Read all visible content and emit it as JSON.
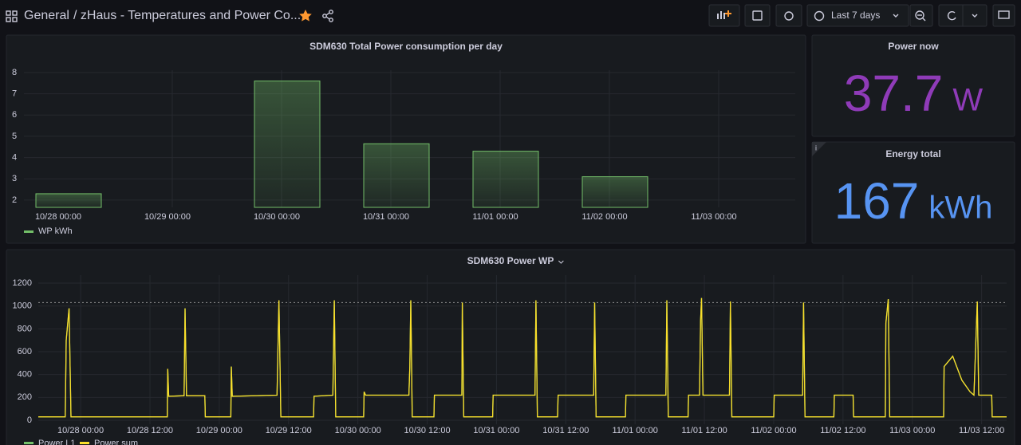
{
  "header": {
    "breadcrumb": "General",
    "title": "/ zHaus - Temperatures and Power Co...",
    "time_range": "Last 7 days"
  },
  "chart_data": [
    {
      "type": "bar",
      "title": "SDM630 Total Power consumption per day",
      "categories": [
        "10/28 00:00",
        "10/29 00:00",
        "10/30 00:00",
        "10/31 00:00",
        "11/01 00:00",
        "11/02 00:00",
        "11/03 00:00"
      ],
      "series": [
        {
          "name": "WP kWh",
          "color": "#73bf69",
          "values": [
            2.3,
            null,
            7.6,
            4.65,
            4.3,
            3.1,
            null
          ]
        }
      ],
      "ylim": [
        1.66,
        8.11
      ],
      "yticks": [
        2,
        3,
        4,
        5,
        6,
        7,
        8
      ],
      "grid": true
    },
    {
      "type": "stat",
      "title": "Power now",
      "value": 37.7,
      "unit": "W",
      "color": "#8f3bb8"
    },
    {
      "type": "stat",
      "title": "Energy total",
      "value": 167,
      "unit": "kWh",
      "color": "#5794f2"
    },
    {
      "type": "line",
      "title": "SDM630 Power WP",
      "x": [
        "10/27 16:40",
        "10/27 21:20",
        "10/27 21:30",
        "10/27 22:00",
        "10/27 22:20",
        "10/28 15:00",
        "10/28 15:05",
        "10/28 15:15",
        "10/28 17:55",
        "10/28 18:05",
        "10/28 18:20",
        "10/28 21:30",
        "10/28 21:35",
        "10/29 02:00",
        "10/29 02:05",
        "10/29 02:15",
        "10/29 10:00",
        "10/29 10:20",
        "10/29 10:40",
        "10/29 16:20",
        "10/29 16:25",
        "10/29 19:40",
        "10/29 19:55",
        "10/29 20:10",
        "10/30 01:00",
        "10/30 01:05",
        "10/30 01:20",
        "10/30 08:50",
        "10/30 09:00",
        "10/30 09:10",
        "10/30 09:25",
        "10/30 13:10",
        "10/30 13:15",
        "10/30 18:00",
        "10/30 18:05",
        "10/30 18:20",
        "10/30 23:20",
        "10/30 23:25",
        "10/31 06:40",
        "10/31 06:50",
        "10/31 07:05",
        "10/31 10:35",
        "10/31 10:40",
        "10/31 16:50",
        "10/31 17:00",
        "10/31 17:15",
        "10/31 22:20",
        "10/31 22:25",
        "11/01 05:20",
        "11/01 05:30",
        "11/01 05:45",
        "11/01 09:10",
        "11/01 09:15",
        "11/01 11:10",
        "11/01 11:20",
        "11/01 11:30",
        "11/01 11:45",
        "11/01 16:20",
        "11/01 16:30",
        "11/01 16:45",
        "11/02 00:00",
        "11/02 00:05",
        "11/02 05:00",
        "11/02 05:10",
        "11/02 05:25",
        "11/02 10:25",
        "11/02 10:30",
        "11/02 13:45",
        "11/02 13:50",
        "11/02 19:20",
        "11/02 19:25",
        "11/02 19:50",
        "11/02 20:05",
        "11/03 05:25",
        "11/03 05:30",
        "11/03 07:00",
        "11/03 08:35",
        "11/03 10:00",
        "11/03 10:40",
        "11/03 11:15",
        "11/03 11:30",
        "11/03 13:45",
        "11/03 13:50",
        "11/03 16:20"
      ],
      "series": [
        {
          "name": "Power L1",
          "color": "#73bf69",
          "values": [
            30,
            30,
            700,
            980,
            30,
            30,
            450,
            210,
            215,
            980,
            215,
            215,
            30,
            30,
            470,
            210,
            220,
            1050,
            30,
            30,
            210,
            220,
            1050,
            30,
            30,
            250,
            220,
            220,
            470,
            1050,
            30,
            30,
            220,
            220,
            1030,
            30,
            30,
            220,
            220,
            1050,
            30,
            30,
            220,
            220,
            1030,
            30,
            30,
            220,
            220,
            1050,
            30,
            30,
            220,
            220,
            870,
            1070,
            220,
            220,
            1040,
            30,
            30,
            220,
            220,
            1030,
            30,
            30,
            220,
            220,
            30,
            30,
            850,
            1060,
            30,
            30,
            470,
            560,
            350,
            250,
            220,
            1040,
            220,
            220,
            30,
            30
          ]
        },
        {
          "name": "Power sum",
          "color": "#fade2a",
          "values": [
            30,
            30,
            700,
            980,
            30,
            30,
            450,
            210,
            215,
            980,
            215,
            215,
            30,
            30,
            470,
            210,
            220,
            1050,
            30,
            30,
            210,
            220,
            1050,
            30,
            30,
            250,
            220,
            220,
            470,
            1050,
            30,
            30,
            220,
            220,
            1030,
            30,
            30,
            220,
            220,
            1050,
            30,
            30,
            220,
            220,
            1030,
            30,
            30,
            220,
            220,
            1050,
            30,
            30,
            220,
            220,
            870,
            1070,
            220,
            220,
            1040,
            30,
            30,
            220,
            220,
            1030,
            30,
            30,
            220,
            220,
            30,
            30,
            850,
            1060,
            30,
            30,
            470,
            560,
            350,
            250,
            220,
            1040,
            220,
            220,
            30,
            30
          ]
        }
      ],
      "xlim": [
        "10/27 16:40",
        "11/03 16:20"
      ],
      "xticks": [
        "10/28 00:00",
        "10/28 12:00",
        "10/29 00:00",
        "10/29 12:00",
        "10/30 00:00",
        "10/30 12:00",
        "10/31 00:00",
        "10/31 12:00",
        "11/01 00:00",
        "11/01 12:00",
        "11/02 00:00",
        "11/02 12:00",
        "11/03 00:00",
        "11/03 12:00"
      ],
      "ylim": [
        -35,
        1270
      ],
      "yticks": [
        0,
        200,
        400,
        600,
        800,
        1000,
        1200
      ],
      "threshold": 1030,
      "grid": true
    }
  ]
}
